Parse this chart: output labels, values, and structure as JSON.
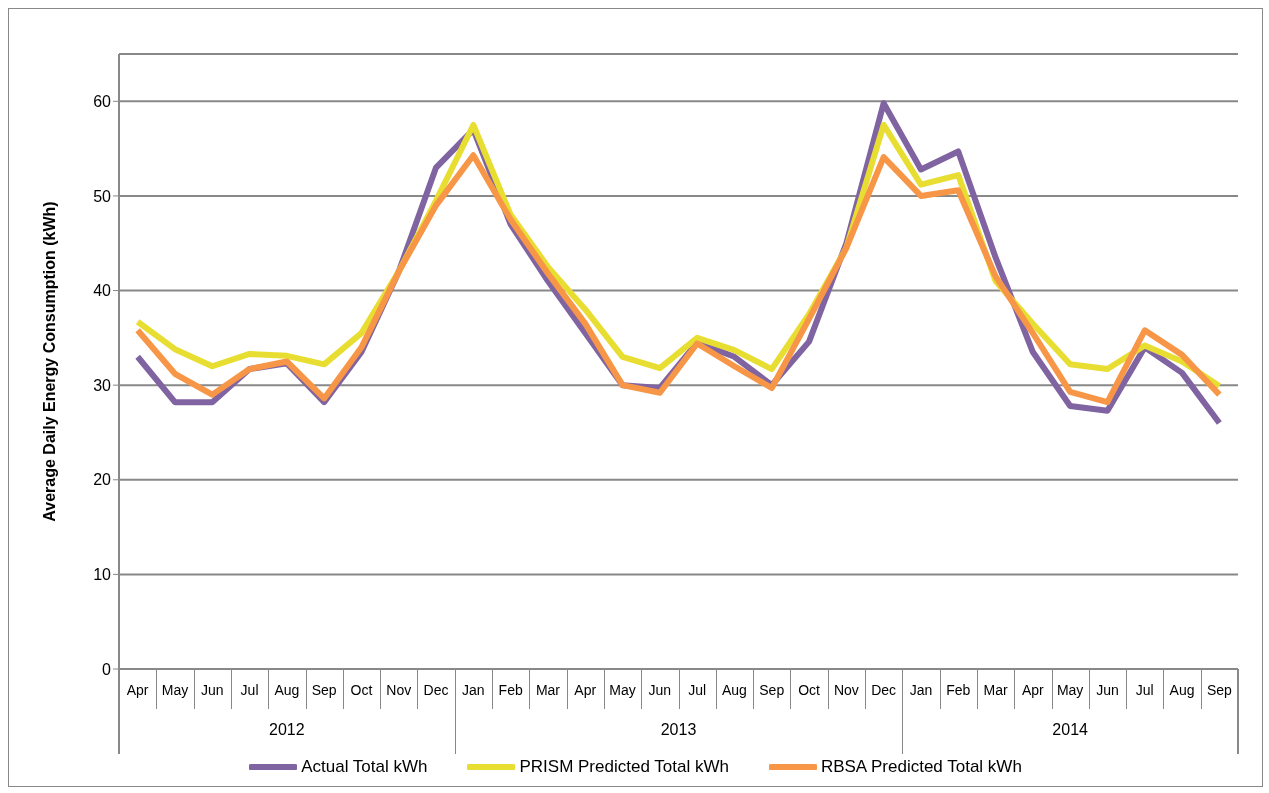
{
  "chart_data": {
    "type": "line",
    "ylabel": "Average Daily Energy Consumption (kWh)",
    "categories": [
      "Apr",
      "May",
      "Jun",
      "Jul",
      "Aug",
      "Sep",
      "Oct",
      "Nov",
      "Dec",
      "Jan",
      "Feb",
      "Mar",
      "Apr",
      "May",
      "Jun",
      "Jul",
      "Aug",
      "Sep",
      "Oct",
      "Nov",
      "Dec",
      "Jan",
      "Feb",
      "Mar",
      "Apr",
      "May",
      "Jun",
      "Jul",
      "Aug",
      "Sep"
    ],
    "annotations": [
      "2012",
      "2013",
      "2014"
    ],
    "series": [
      {
        "name": "Actual Total kWh",
        "color": "#8064a2",
        "values": [
          33,
          28.2,
          28.2,
          31.7,
          32.3,
          28.2,
          33.5,
          42,
          53,
          57,
          47,
          41,
          35.5,
          30,
          29.7,
          34.5,
          33,
          30,
          34.6,
          45,
          59.8,
          52.8,
          54.7,
          43.5,
          33.5,
          27.8,
          27.3,
          34,
          31.3,
          26
        ]
      },
      {
        "name": "PRISM Predicted Total kWh",
        "color": "#e8de32",
        "values": [
          36.7,
          33.8,
          32,
          33.3,
          33.1,
          32.2,
          35.5,
          42,
          49.5,
          57.5,
          48,
          42.5,
          38,
          33,
          31.8,
          35,
          33.7,
          31.7,
          37.5,
          44.5,
          57.5,
          51.2,
          52.2,
          41,
          36.5,
          32.2,
          31.7,
          34.2,
          32.5,
          29.9
        ]
      },
      {
        "name": "RBSA Predicted Total kWh",
        "color": "#f79646",
        "values": [
          35.8,
          31.2,
          29,
          31.7,
          32.5,
          28.6,
          34,
          42,
          49,
          54.3,
          47.5,
          41.8,
          36.5,
          30,
          29.2,
          34.4,
          32,
          29.7,
          37,
          44.5,
          54.1,
          50,
          50.6,
          41.5,
          35.5,
          29.3,
          28.2,
          35.8,
          33.2,
          29
        ]
      }
    ],
    "ylim": [
      0,
      65
    ],
    "yticks": [
      0,
      10,
      20,
      30,
      40,
      50,
      60
    ],
    "grid": "y",
    "legend": "bottom",
    "marker": "none",
    "line_style": "solid"
  }
}
